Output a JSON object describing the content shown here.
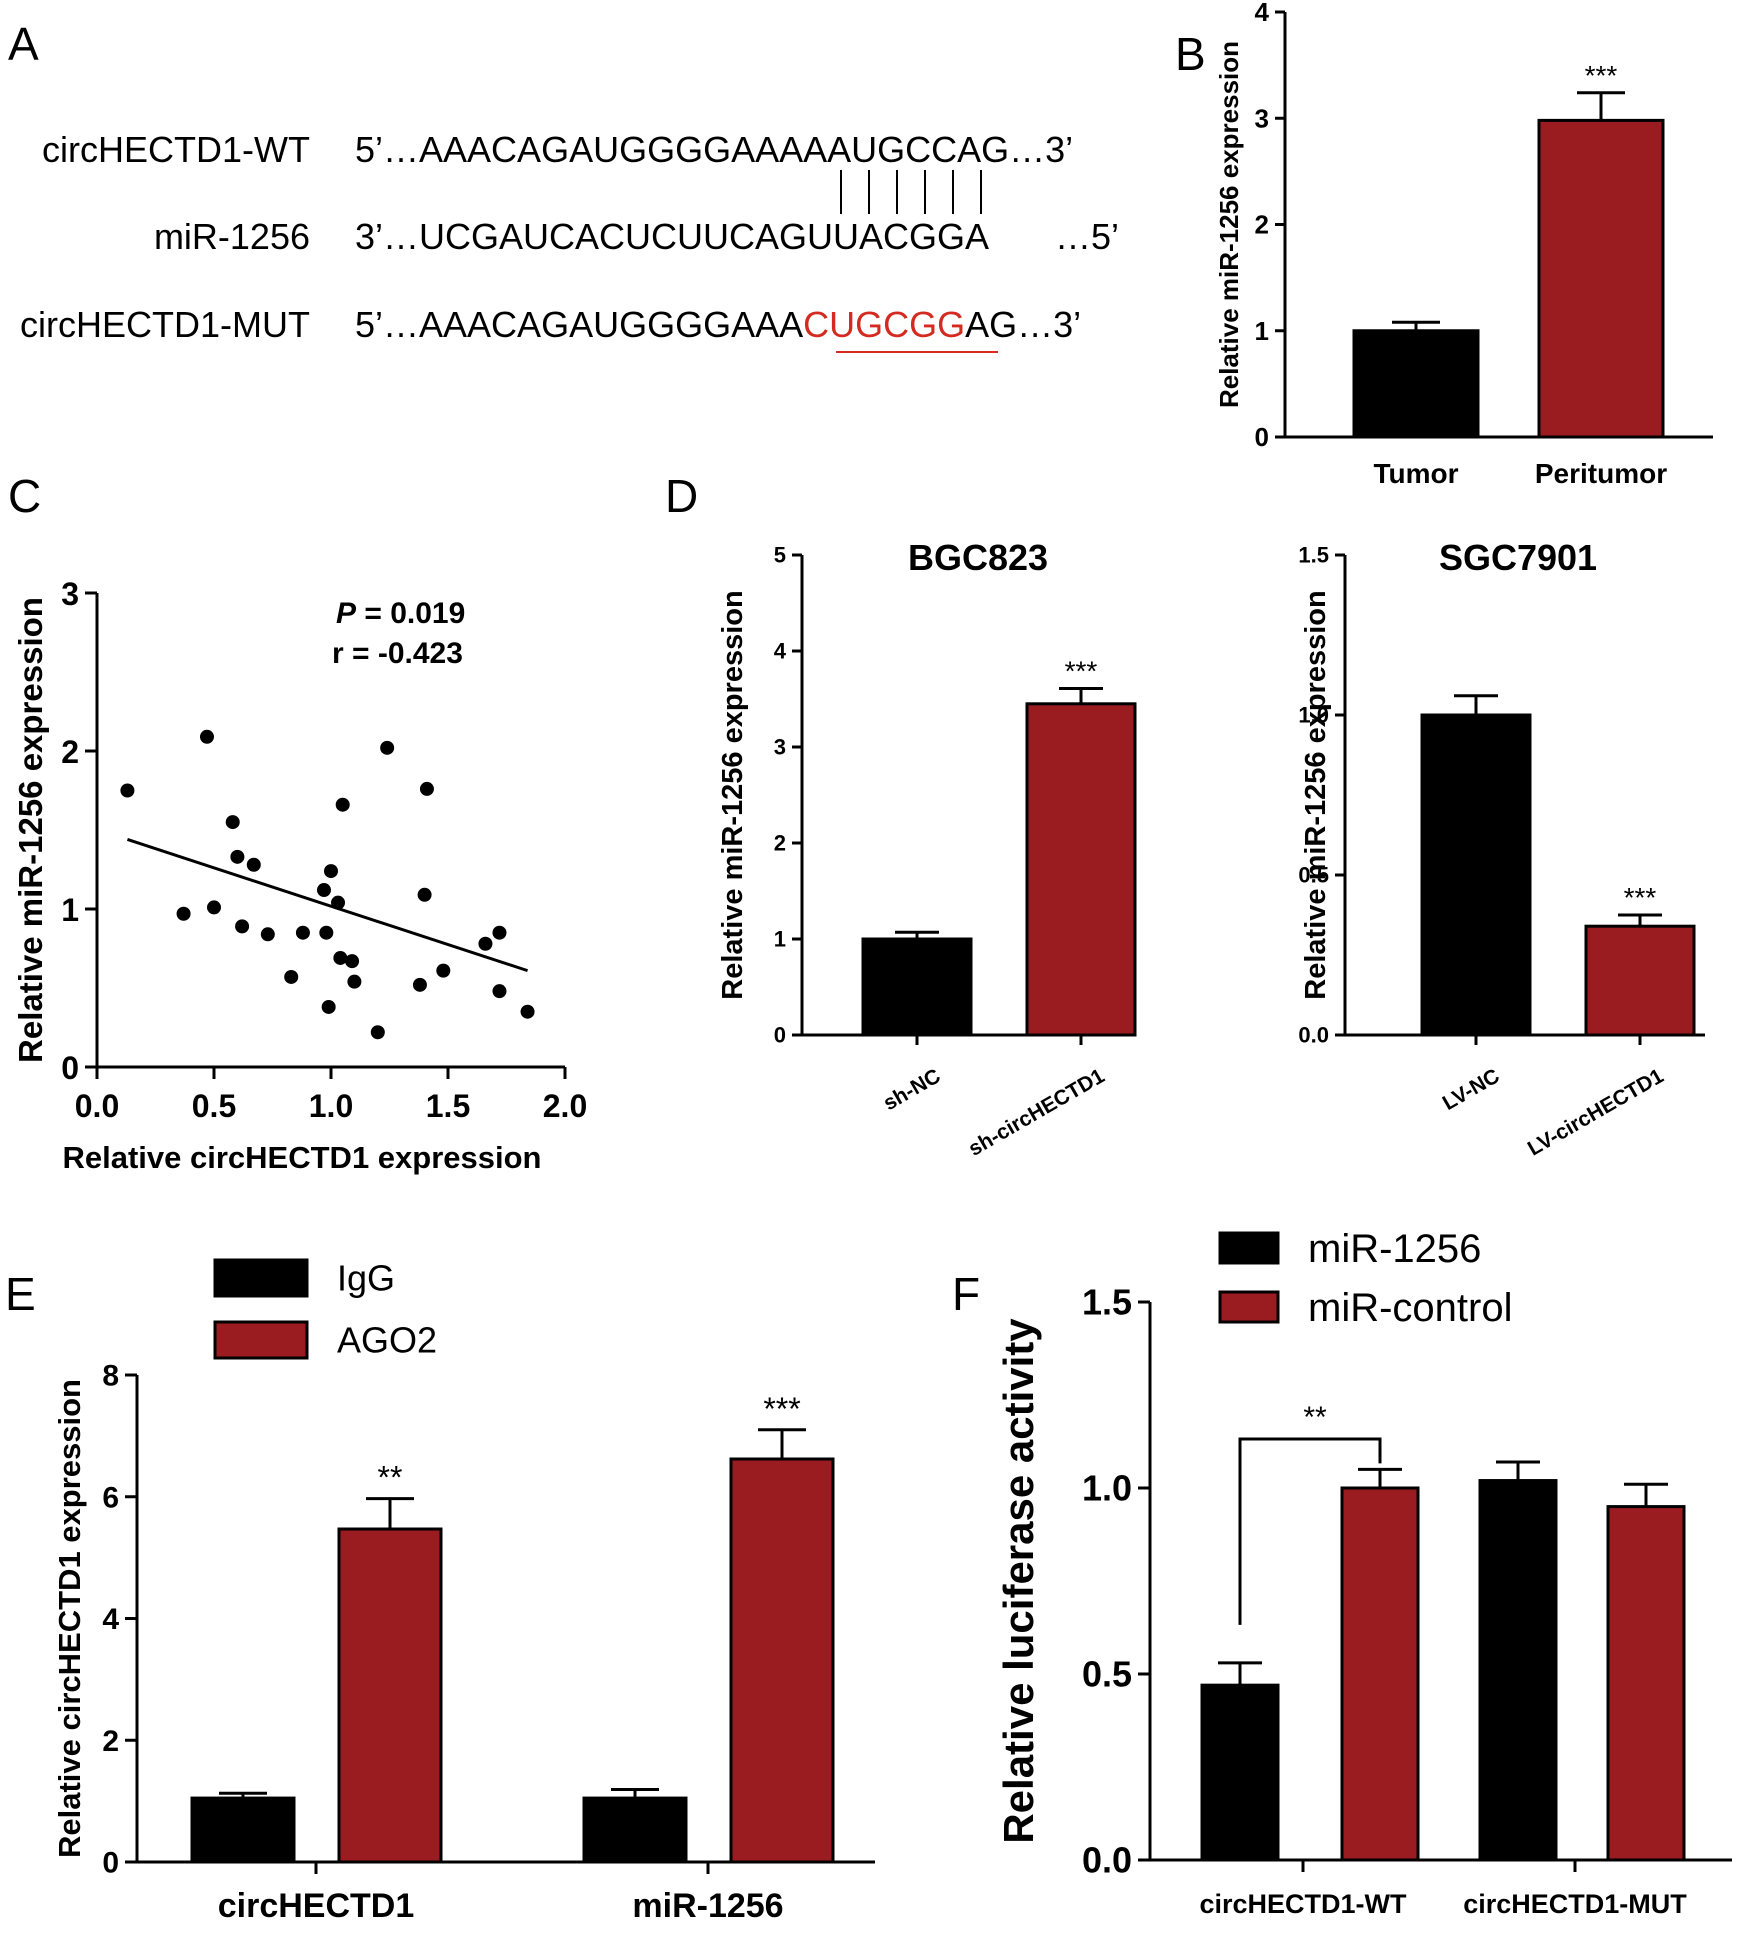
{
  "colors": {
    "black_bar": "#000000",
    "red_bar": "#9b1c20",
    "mutation_red": "#d42a1f"
  },
  "panels": {
    "A": {
      "label": "A",
      "rows": [
        {
          "name": "circHECTD1-WT",
          "seq_prefix": "5’…AAACAGAUGGGGAAAAAUGCCAG…3’",
          "seq_highlight": "",
          "seq_suffix": ""
        },
        {
          "name": "miR-1256",
          "seq_prefix": "3’…UCGAUCACUCUUCAGUUACGGA",
          "seq_highlight": "",
          "seq_suffix": "…5’"
        },
        {
          "name": "circHECTD1-MUT",
          "seq_prefix": "5’…AAACAGAUGGGGAAA",
          "seq_highlight": "CUGCGG",
          "seq_suffix": "AG…3’"
        }
      ]
    },
    "B": {
      "label": "B"
    },
    "C": {
      "label": "C"
    },
    "D": {
      "label": "D"
    },
    "E": {
      "label": "E"
    },
    "F": {
      "label": "F"
    }
  },
  "chart_data": [
    {
      "id": "B",
      "type": "bar",
      "title": "",
      "xlabel": "",
      "ylabel": "Relative miR-1256 expression",
      "ylim": [
        0,
        4
      ],
      "yticks": [
        "0",
        "1",
        "2",
        "3",
        "4"
      ],
      "categories": [
        "Tumor",
        "Peritumor"
      ],
      "values": [
        1.0,
        2.98
      ],
      "errors": [
        0.08,
        0.26
      ],
      "colors": [
        "black",
        "red"
      ],
      "significance": [
        "",
        "***"
      ]
    },
    {
      "id": "C",
      "type": "scatter",
      "xlabel": "Relative circHECTD1 expression",
      "ylabel": "Relative miR-1256 expression",
      "xlim": [
        0,
        2.0
      ],
      "ylim": [
        0,
        3
      ],
      "xticks": [
        "0.0",
        "0.5",
        "1.0",
        "1.5",
        "2.0"
      ],
      "yticks": [
        "0",
        "1",
        "2",
        "3"
      ],
      "annotation_p_label": "P",
      "annotation_p_value": "= 0.019",
      "annotation_r": "r = -0.423",
      "points": [
        [
          0.13,
          1.75
        ],
        [
          0.47,
          2.09
        ],
        [
          0.58,
          1.55
        ],
        [
          0.6,
          1.33
        ],
        [
          0.67,
          1.28
        ],
        [
          0.37,
          0.97
        ],
        [
          0.5,
          1.01
        ],
        [
          0.62,
          0.89
        ],
        [
          0.73,
          0.84
        ],
        [
          0.83,
          0.57
        ],
        [
          0.88,
          0.85
        ],
        [
          0.98,
          0.85
        ],
        [
          0.97,
          1.12
        ],
        [
          1.0,
          1.24
        ],
        [
          1.03,
          1.04
        ],
        [
          1.05,
          1.66
        ],
        [
          1.04,
          0.69
        ],
        [
          1.09,
          0.67
        ],
        [
          1.1,
          0.54
        ],
        [
          0.99,
          0.38
        ],
        [
          1.2,
          0.22
        ],
        [
          1.24,
          2.02
        ],
        [
          1.38,
          0.52
        ],
        [
          1.41,
          1.76
        ],
        [
          1.4,
          1.09
        ],
        [
          1.48,
          0.61
        ],
        [
          1.66,
          0.78
        ],
        [
          1.72,
          0.85
        ],
        [
          1.72,
          0.48
        ],
        [
          1.84,
          0.35
        ]
      ],
      "fit_line": [
        [
          0.13,
          1.44
        ],
        [
          1.84,
          0.61
        ]
      ]
    },
    {
      "id": "D1",
      "type": "bar",
      "title": "BGC823",
      "ylabel": "Relative miR-1256 expression",
      "ylim": [
        0,
        5
      ],
      "yticks": [
        "0",
        "1",
        "2",
        "3",
        "4",
        "5"
      ],
      "categories": [
        "sh-NC",
        "sh-circHECTD1"
      ],
      "values": [
        1.0,
        3.45
      ],
      "errors": [
        0.07,
        0.16
      ],
      "colors": [
        "black",
        "red"
      ],
      "significance": [
        "",
        "***"
      ]
    },
    {
      "id": "D2",
      "type": "bar",
      "title": "SGC7901",
      "ylabel": "Relative miR-1256 expression",
      "ylim": [
        0,
        1.5
      ],
      "yticks": [
        "0.0",
        "0.5",
        "1.0",
        "1.5"
      ],
      "categories": [
        "LV-NC",
        "LV-circHECTD1"
      ],
      "values": [
        1.0,
        0.34
      ],
      "errors": [
        0.06,
        0.035
      ],
      "colors": [
        "black",
        "red"
      ],
      "significance": [
        "",
        "***"
      ]
    },
    {
      "id": "E",
      "type": "bar",
      "ylabel": "Relative circHECTD1 expression",
      "ylim": [
        0,
        8
      ],
      "yticks": [
        "0",
        "2",
        "4",
        "6",
        "8"
      ],
      "categories": [
        "circHECTD1",
        "miR-1256"
      ],
      "series": [
        {
          "name": "IgG",
          "values": [
            1.05,
            1.05
          ],
          "errors": [
            0.08,
            0.14
          ],
          "color": "black"
        },
        {
          "name": "AGO2",
          "values": [
            5.47,
            6.62
          ],
          "errors": [
            0.5,
            0.48
          ],
          "color": "red"
        }
      ],
      "significance": [
        "**",
        "***"
      ],
      "legend_position": "top-left"
    },
    {
      "id": "F",
      "type": "bar",
      "ylabel": "Relative luciferase activity",
      "ylim": [
        0,
        1.5
      ],
      "yticks": [
        "0.0",
        "0.5",
        "1.0",
        "1.5"
      ],
      "categories": [
        "circHECTD1-WT",
        "circHECTD1-MUT"
      ],
      "series": [
        {
          "name": "miR-1256",
          "values": [
            0.47,
            1.02
          ],
          "errors": [
            0.06,
            0.05
          ],
          "color": "black"
        },
        {
          "name": "miR-control",
          "values": [
            1.0,
            0.95
          ],
          "errors": [
            0.05,
            0.06
          ],
          "color": "red"
        }
      ],
      "bracket_label": "**",
      "legend_position": "top"
    }
  ]
}
